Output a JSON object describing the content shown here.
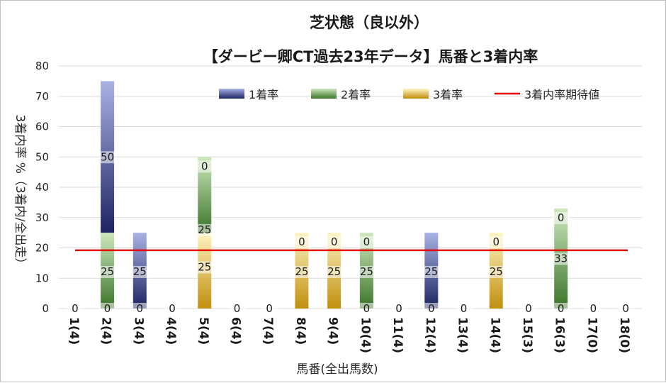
{
  "chart_data": {
    "type": "bar",
    "title": "芝状態（良以外）",
    "subtitle": "【ダービー卿CT過去23年データ】馬番と3着内率",
    "xlabel": "馬番(全出馬数)",
    "ylabel": "3着内率 %（3着内/全出走）",
    "ylim": [
      0,
      80
    ],
    "yticks": [
      "0",
      "10",
      "20",
      "30",
      "40",
      "50",
      "60",
      "70",
      "80"
    ],
    "categories": [
      "1(4)",
      "2(4)",
      "3(4)",
      "4(4)",
      "5(4)",
      "6(4)",
      "7(4)",
      "8(4)",
      "9(4)",
      "10(4)",
      "11(4)",
      "12(4)",
      "13(4)",
      "14(4)",
      "15(3)",
      "16(3)",
      "17(0)",
      "18(0)"
    ],
    "series": [
      {
        "name": "1着率",
        "values": [
          0,
          50,
          25,
          0,
          0,
          0,
          0,
          0,
          0,
          0,
          0,
          25,
          0,
          0,
          0,
          0,
          0,
          0
        ]
      },
      {
        "name": "2着率",
        "values": [
          0,
          25,
          0,
          0,
          25,
          0,
          0,
          0,
          0,
          25,
          0,
          0,
          0,
          0,
          0,
          33,
          0,
          0
        ]
      },
      {
        "name": "3着率",
        "values": [
          0,
          0,
          0,
          0,
          25,
          0,
          0,
          25,
          25,
          0,
          0,
          0,
          0,
          25,
          0,
          0,
          0,
          0
        ]
      }
    ],
    "reference_line": {
      "name": "3着内率期待値",
      "value": 19.2
    },
    "bar_labels": [
      [
        {
          "seg": 0,
          "text": "0"
        }
      ],
      [
        {
          "seg": 1,
          "text": "0"
        },
        {
          "seg": 2,
          "text": "25"
        },
        {
          "seg": 3,
          "text": "50"
        }
      ],
      [
        {
          "seg": 1,
          "text": "0"
        },
        {
          "seg": 2,
          "text": "25"
        }
      ],
      [
        {
          "seg": 0,
          "text": "0"
        }
      ],
      [
        {
          "seg": 2,
          "text": "25"
        },
        {
          "seg": 3,
          "text": "25"
        },
        {
          "seg": 4,
          "text": "0"
        }
      ],
      [
        {
          "seg": 0,
          "text": "0"
        }
      ],
      [
        {
          "seg": 0,
          "text": "0"
        }
      ],
      [
        {
          "seg": 2,
          "text": "25"
        },
        {
          "seg": 4,
          "text": "0"
        }
      ],
      [
        {
          "seg": 2,
          "text": "25"
        },
        {
          "seg": 4,
          "text": "0"
        }
      ],
      [
        {
          "seg": 1,
          "text": "0"
        },
        {
          "seg": 2,
          "text": "25"
        },
        {
          "seg": 4,
          "text": "0"
        }
      ],
      [
        {
          "seg": 0,
          "text": "0"
        }
      ],
      [
        {
          "seg": 1,
          "text": "0"
        },
        {
          "seg": 2,
          "text": "25"
        }
      ],
      [
        {
          "seg": 0,
          "text": "0"
        }
      ],
      [
        {
          "seg": 2,
          "text": "25"
        },
        {
          "seg": 4,
          "text": "0"
        }
      ],
      [
        {
          "seg": 0,
          "text": "0"
        }
      ],
      [
        {
          "seg": 1,
          "text": "0"
        },
        {
          "seg": 2,
          "text": "33"
        },
        {
          "seg": 4,
          "text": "0"
        }
      ],
      [
        {
          "seg": 0,
          "text": "0"
        }
      ],
      [
        {
          "seg": 0,
          "text": "0"
        }
      ]
    ],
    "legend_position": "top-right",
    "colors": {
      "win_light": "#a4aee0",
      "win_dark": "#1f2a6b",
      "second_light": "#c5e3b4",
      "second_dark": "#3e7a2e",
      "third_light": "#fff1b3",
      "third_dark": "#c29310",
      "line": "#e60000",
      "grid": "#d9d9d9"
    }
  }
}
